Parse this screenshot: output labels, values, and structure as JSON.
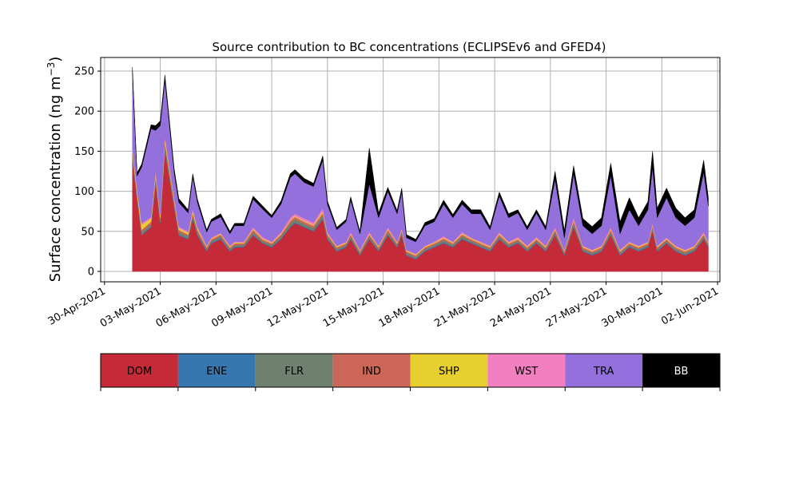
{
  "chart_data": {
    "type": "area",
    "title": "Source contribution to BC concentrations (ECLIPSEv6 and GFED4)",
    "ylabel_main": "Surface concentration (ng m",
    "ylabel_sup": "−3",
    "ylabel_close": ")",
    "xlabel": "",
    "ylim": [
      -13,
      267
    ],
    "y_ticks": [
      0,
      50,
      100,
      150,
      200,
      250
    ],
    "y_tick_labels": [
      "0",
      "50",
      "100",
      "150",
      "200",
      "250"
    ],
    "x_range_days": [
      "2021-04-29T19:00",
      "2021-06-02T03:00"
    ],
    "x_ticks": [
      "2021-04-30",
      "2021-05-03",
      "2021-05-06",
      "2021-05-09",
      "2021-05-12",
      "2021-05-15",
      "2021-05-18",
      "2021-05-21",
      "2021-05-24",
      "2021-05-27",
      "2021-05-30",
      "2021-06-02"
    ],
    "x_tick_labels": [
      "30-Apr-2021",
      "03-May-2021",
      "06-May-2021",
      "09-May-2021",
      "12-May-2021",
      "15-May-2021",
      "18-May-2021",
      "21-May-2021",
      "24-May-2021",
      "27-May-2021",
      "30-May-2021",
      "02-Jun-2021"
    ],
    "grid": true,
    "x": [
      "2021-05-01T12:00",
      "2021-05-01T18:00",
      "2021-05-02T00:00",
      "2021-05-02T12:00",
      "2021-05-02T18:00",
      "2021-05-03T00:00",
      "2021-05-03T06:00",
      "2021-05-03T18:00",
      "2021-05-04T00:00",
      "2021-05-04T12:00",
      "2021-05-04T18:00",
      "2021-05-05T00:00",
      "2021-05-05T12:00",
      "2021-05-05T18:00",
      "2021-05-06T06:00",
      "2021-05-06T18:00",
      "2021-05-07T00:00",
      "2021-05-07T12:00",
      "2021-05-08T00:00",
      "2021-05-08T12:00",
      "2021-05-09T00:00",
      "2021-05-09T12:00",
      "2021-05-10T00:00",
      "2021-05-10T06:00",
      "2021-05-10T18:00",
      "2021-05-11T06:00",
      "2021-05-11T18:00",
      "2021-05-12T00:00",
      "2021-05-12T12:00",
      "2021-05-13T00:00",
      "2021-05-13T06:00",
      "2021-05-13T18:00",
      "2021-05-14T06:00",
      "2021-05-14T18:00",
      "2021-05-15T06:00",
      "2021-05-15T18:00",
      "2021-05-16T00:00",
      "2021-05-16T06:00",
      "2021-05-16T18:00",
      "2021-05-17T00:00",
      "2021-05-17T06:00",
      "2021-05-17T18:00",
      "2021-05-18T06:00",
      "2021-05-18T18:00",
      "2021-05-19T06:00",
      "2021-05-19T18:00",
      "2021-05-20T06:00",
      "2021-05-20T18:00",
      "2021-05-21T06:00",
      "2021-05-21T18:00",
      "2021-05-22T06:00",
      "2021-05-22T18:00",
      "2021-05-23T06:00",
      "2021-05-23T18:00",
      "2021-05-24T06:00",
      "2021-05-24T18:00",
      "2021-05-25T06:00",
      "2021-05-25T18:00",
      "2021-05-26T06:00",
      "2021-05-26T18:00",
      "2021-05-27T06:00",
      "2021-05-27T18:00",
      "2021-05-28T06:00",
      "2021-05-28T18:00",
      "2021-05-29T06:00",
      "2021-05-29T12:00",
      "2021-05-29T18:00",
      "2021-05-30T06:00",
      "2021-05-30T18:00",
      "2021-05-31T06:00",
      "2021-05-31T18:00",
      "2021-06-01T06:00",
      "2021-06-01T12:00"
    ],
    "series": [
      {
        "name": "DOM",
        "color": "#c52a38",
        "values": [
          140,
          90,
          45,
          55,
          110,
          60,
          150,
          80,
          45,
          40,
          65,
          45,
          25,
          35,
          40,
          25,
          30,
          30,
          45,
          35,
          30,
          40,
          55,
          60,
          55,
          50,
          65,
          40,
          25,
          30,
          40,
          20,
          40,
          25,
          45,
          30,
          45,
          20,
          15,
          20,
          25,
          30,
          35,
          30,
          40,
          35,
          30,
          25,
          40,
          30,
          35,
          25,
          35,
          25,
          45,
          20,
          55,
          25,
          20,
          25,
          45,
          20,
          30,
          25,
          30,
          50,
          25,
          35,
          25,
          20,
          25,
          40,
          30
        ]
      },
      {
        "name": "ENE",
        "color": "#3677b0",
        "values": [
          1,
          1,
          1,
          1,
          1,
          1,
          1,
          1,
          1,
          1,
          1,
          1,
          1,
          1,
          1,
          1,
          1,
          1,
          1,
          1,
          1,
          1,
          1,
          1,
          1,
          1,
          1,
          1,
          1,
          1,
          1,
          1,
          1,
          1,
          1,
          1,
          1,
          1,
          1,
          1,
          1,
          1,
          1,
          1,
          1,
          1,
          1,
          1,
          1,
          1,
          1,
          1,
          1,
          1,
          1,
          1,
          1,
          1,
          1,
          1,
          1,
          1,
          1,
          1,
          1,
          1,
          1,
          1,
          1,
          1,
          1,
          1,
          1
        ]
      },
      {
        "name": "FLR",
        "color": "#6f8070",
        "values": [
          5,
          4,
          3,
          3,
          5,
          3,
          6,
          4,
          3,
          3,
          4,
          3,
          2,
          2,
          3,
          2,
          2,
          2,
          3,
          2,
          2,
          3,
          4,
          4,
          3,
          3,
          4,
          3,
          2,
          2,
          3,
          2,
          3,
          2,
          3,
          2,
          3,
          2,
          2,
          2,
          2,
          2,
          3,
          2,
          3,
          2,
          2,
          2,
          3,
          2,
          2,
          2,
          2,
          2,
          3,
          2,
          4,
          2,
          2,
          2,
          3,
          2,
          2,
          2,
          2,
          3,
          2,
          2,
          2,
          2,
          2,
          3,
          2
        ]
      },
      {
        "name": "IND",
        "color": "#cc6657",
        "values": [
          4,
          3,
          3,
          3,
          4,
          3,
          5,
          3,
          3,
          2,
          3,
          3,
          2,
          2,
          2,
          2,
          2,
          2,
          3,
          2,
          2,
          2,
          3,
          3,
          3,
          3,
          3,
          2,
          2,
          2,
          2,
          2,
          2,
          2,
          3,
          2,
          2,
          2,
          2,
          2,
          2,
          2,
          2,
          2,
          2,
          2,
          2,
          2,
          2,
          2,
          2,
          2,
          2,
          2,
          3,
          2,
          3,
          2,
          2,
          2,
          3,
          2,
          2,
          2,
          2,
          3,
          2,
          2,
          2,
          2,
          2,
          2,
          2
        ]
      },
      {
        "name": "SHP",
        "color": "#e8cf30",
        "values": [
          3,
          4,
          6,
          4,
          4,
          3,
          4,
          3,
          2,
          2,
          3,
          2,
          1,
          1,
          1,
          1,
          1,
          1,
          1,
          1,
          1,
          1,
          1,
          1,
          1,
          1,
          2,
          1,
          1,
          1,
          1,
          1,
          1,
          1,
          1,
          1,
          1,
          1,
          1,
          1,
          1,
          1,
          1,
          1,
          1,
          1,
          1,
          1,
          1,
          1,
          1,
          1,
          1,
          1,
          1,
          1,
          1,
          1,
          1,
          1,
          1,
          1,
          1,
          1,
          1,
          1,
          1,
          1,
          1,
          1,
          1,
          1,
          1
        ]
      },
      {
        "name": "WST",
        "color": "#f27fbf",
        "values": [
          2,
          2,
          2,
          2,
          2,
          2,
          3,
          2,
          2,
          2,
          2,
          2,
          1,
          1,
          1,
          1,
          1,
          1,
          2,
          2,
          1,
          2,
          3,
          3,
          3,
          3,
          4,
          2,
          1,
          1,
          2,
          1,
          2,
          1,
          2,
          1,
          2,
          1,
          1,
          1,
          1,
          1,
          2,
          1,
          2,
          1,
          1,
          1,
          2,
          1,
          2,
          1,
          2,
          1,
          2,
          1,
          3,
          1,
          1,
          1,
          2,
          1,
          1,
          1,
          1,
          2,
          1,
          1,
          1,
          1,
          1,
          2,
          1
        ]
      },
      {
        "name": "TRA",
        "color": "#9370db",
        "values": [
          95,
          15,
          70,
          110,
          50,
          110,
          70,
          30,
          30,
          23,
          40,
          30,
          17,
          20,
          20,
          15,
          20,
          20,
          35,
          35,
          30,
          35,
          50,
          50,
          45,
          45,
          60,
          35,
          20,
          25,
          40,
          20,
          60,
          35,
          45,
          35,
          45,
          15,
          15,
          20,
          25,
          25,
          40,
          30,
          35,
          30,
          35,
          20,
          45,
          30,
          30,
          20,
          30,
          20,
          60,
          15,
          55,
          25,
          20,
          25,
          65,
          20,
          40,
          25,
          40,
          70,
          35,
          50,
          35,
          30,
          35,
          75,
          45
        ]
      },
      {
        "name": "BB",
        "color": "#000000",
        "values": [
          5,
          4,
          4,
          5,
          6,
          6,
          6,
          5,
          5,
          4,
          4,
          4,
          3,
          3,
          4,
          3,
          3,
          3,
          4,
          4,
          3,
          4,
          5,
          5,
          5,
          4,
          5,
          4,
          3,
          3,
          4,
          3,
          45,
          6,
          5,
          4,
          5,
          4,
          3,
          3,
          4,
          4,
          5,
          4,
          5,
          5,
          5,
          4,
          5,
          5,
          4,
          4,
          4,
          4,
          10,
          9,
          10,
          9,
          9,
          10,
          15,
          15,
          15,
          10,
          10,
          20,
          12,
          12,
          12,
          10,
          10,
          15,
          10
        ]
      }
    ],
    "legend": {
      "placement": "bottom",
      "entries": [
        {
          "label": "DOM",
          "color": "#c52a38",
          "text_color": "#000000"
        },
        {
          "label": "ENE",
          "color": "#3677b0",
          "text_color": "#000000"
        },
        {
          "label": "FLR",
          "color": "#6f8070",
          "text_color": "#000000"
        },
        {
          "label": "IND",
          "color": "#cc6657",
          "text_color": "#000000"
        },
        {
          "label": "SHP",
          "color": "#e8cf30",
          "text_color": "#000000"
        },
        {
          "label": "WST",
          "color": "#f27fbf",
          "text_color": "#000000"
        },
        {
          "label": "TRA",
          "color": "#9370db",
          "text_color": "#000000"
        },
        {
          "label": "BB",
          "color": "#000000",
          "text_color": "#ffffff"
        }
      ]
    }
  }
}
